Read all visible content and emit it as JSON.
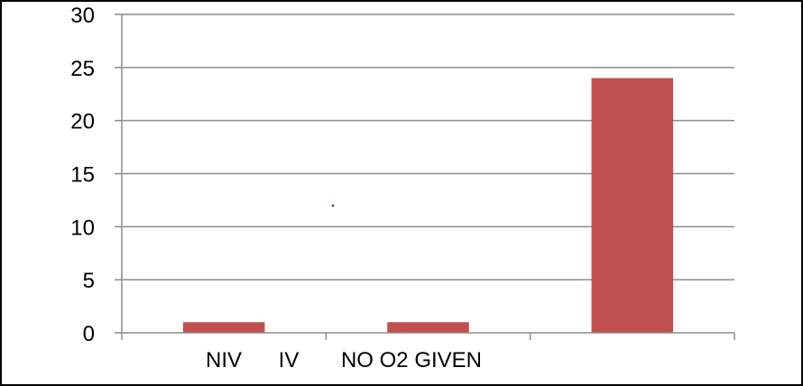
{
  "chart_data": {
    "type": "bar",
    "categories": [
      "",
      "",
      ""
    ],
    "values": [
      1,
      1,
      24
    ],
    "ylim": [
      0,
      30
    ],
    "yticks": [
      0,
      5,
      10,
      15,
      20,
      25,
      30
    ],
    "grid": true,
    "legend": "none",
    "bar_color": "#c0504d",
    "x_axis_text": [
      "NIV",
      "IV",
      "NO O2 GIVEN"
    ]
  }
}
